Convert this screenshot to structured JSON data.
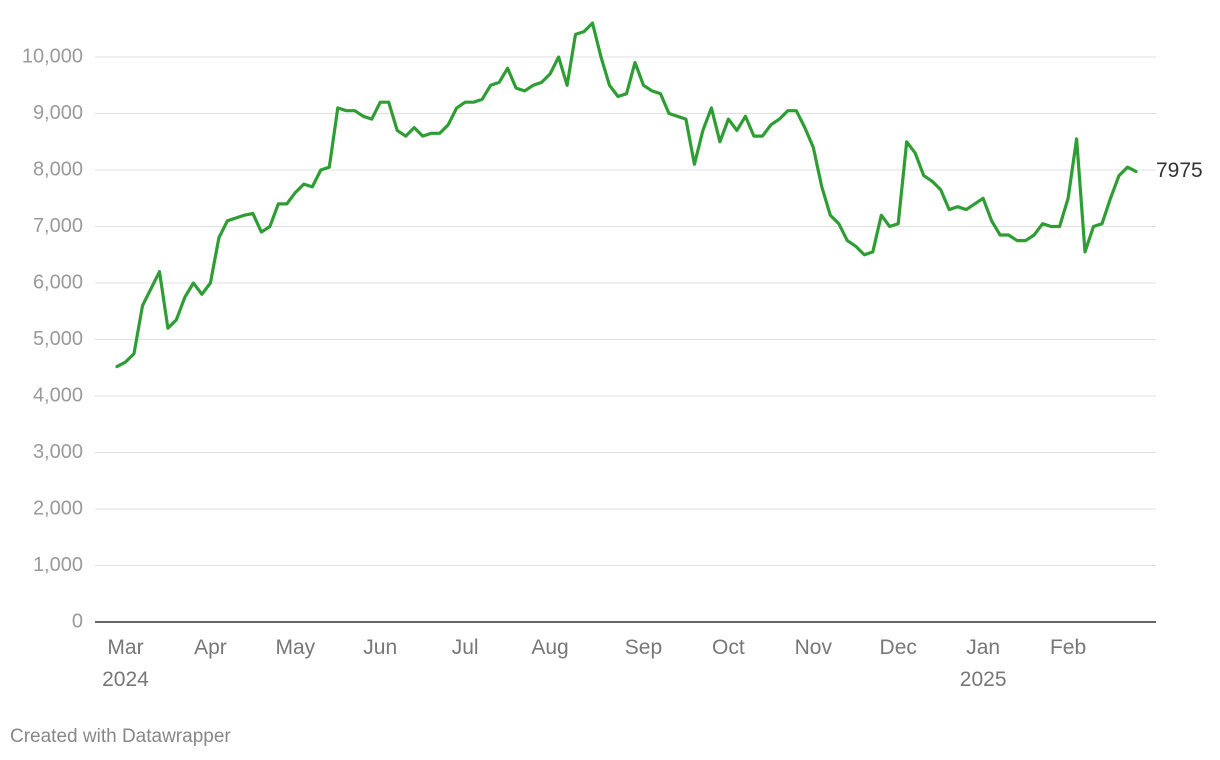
{
  "chart_data": {
    "type": "line",
    "credit": "Created with Datawrapper",
    "categories": [
      null,
      "Mar 2024",
      null,
      null,
      null,
      null,
      null,
      null,
      null,
      null,
      null,
      "Apr",
      null,
      null,
      null,
      null,
      null,
      null,
      null,
      null,
      null,
      "May",
      null,
      null,
      null,
      null,
      null,
      null,
      null,
      null,
      null,
      "Jun",
      null,
      null,
      null,
      null,
      null,
      null,
      null,
      null,
      null,
      "Jul",
      null,
      null,
      null,
      null,
      null,
      null,
      null,
      null,
      null,
      "Aug",
      null,
      null,
      null,
      null,
      null,
      null,
      null,
      null,
      null,
      null,
      "Sep",
      null,
      null,
      null,
      null,
      null,
      null,
      null,
      null,
      null,
      "Oct",
      null,
      null,
      null,
      null,
      null,
      null,
      null,
      null,
      null,
      "Nov",
      null,
      null,
      null,
      null,
      null,
      null,
      null,
      null,
      null,
      "Dec",
      null,
      null,
      null,
      null,
      null,
      null,
      null,
      null,
      null,
      "Jan 2025",
      null,
      null,
      null,
      null,
      null,
      null,
      null,
      null,
      null,
      "Feb",
      null,
      null,
      null,
      null,
      null,
      null,
      null,
      null
    ],
    "series": [
      {
        "color": "#2e9e34",
        "values": [
          4520,
          4600,
          4750,
          5600,
          5900,
          6200,
          5200,
          5350,
          5750,
          6000,
          5800,
          6000,
          6800,
          7100,
          7150,
          7200,
          7230,
          6900,
          7000,
          7400,
          7400,
          7600,
          7750,
          7700,
          8000,
          8050,
          9100,
          9050,
          9050,
          8950,
          8900,
          9200,
          9200,
          8700,
          8600,
          8750,
          8600,
          8650,
          8650,
          8800,
          9100,
          9200,
          9200,
          9250,
          9500,
          9550,
          9800,
          9450,
          9400,
          9500,
          9550,
          9700,
          10000,
          9500,
          10400,
          10450,
          10600,
          10000,
          9500,
          9300,
          9350,
          9900,
          9500,
          9400,
          9350,
          9000,
          8950,
          8900,
          8100,
          8700,
          9100,
          8500,
          8900,
          8700,
          8950,
          8600,
          8600,
          8800,
          8900,
          9050,
          9050,
          8750,
          8400,
          7700,
          7200,
          7050,
          6750,
          6650,
          6500,
          6550,
          7200,
          7000,
          7050,
          8500,
          8300,
          7900,
          7800,
          7650,
          7300,
          7350,
          7300,
          7400,
          7500,
          7100,
          6850,
          6850,
          6750,
          6750,
          6850,
          7050,
          7000,
          7000,
          7500,
          8550,
          6550,
          7000,
          7050,
          7500,
          7900,
          8050,
          7975
        ]
      }
    ],
    "ylim": [
      0,
      10600
    ],
    "yticks": [
      0,
      {
        "value": 1000,
        "label": "1,000"
      },
      {
        "value": 2000,
        "label": "2,000"
      },
      {
        "value": 3000,
        "label": "3,000"
      },
      {
        "value": 4000,
        "label": "4,000"
      },
      {
        "value": 5000,
        "label": "5,000"
      },
      {
        "value": 6000,
        "label": "6,000"
      },
      {
        "value": 7000,
        "label": "7,000"
      },
      {
        "value": 8000,
        "label": "8,000"
      },
      {
        "value": 9000,
        "label": "9,000"
      },
      {
        "value": 10000,
        "label": "10,000"
      }
    ],
    "grid": true
  }
}
